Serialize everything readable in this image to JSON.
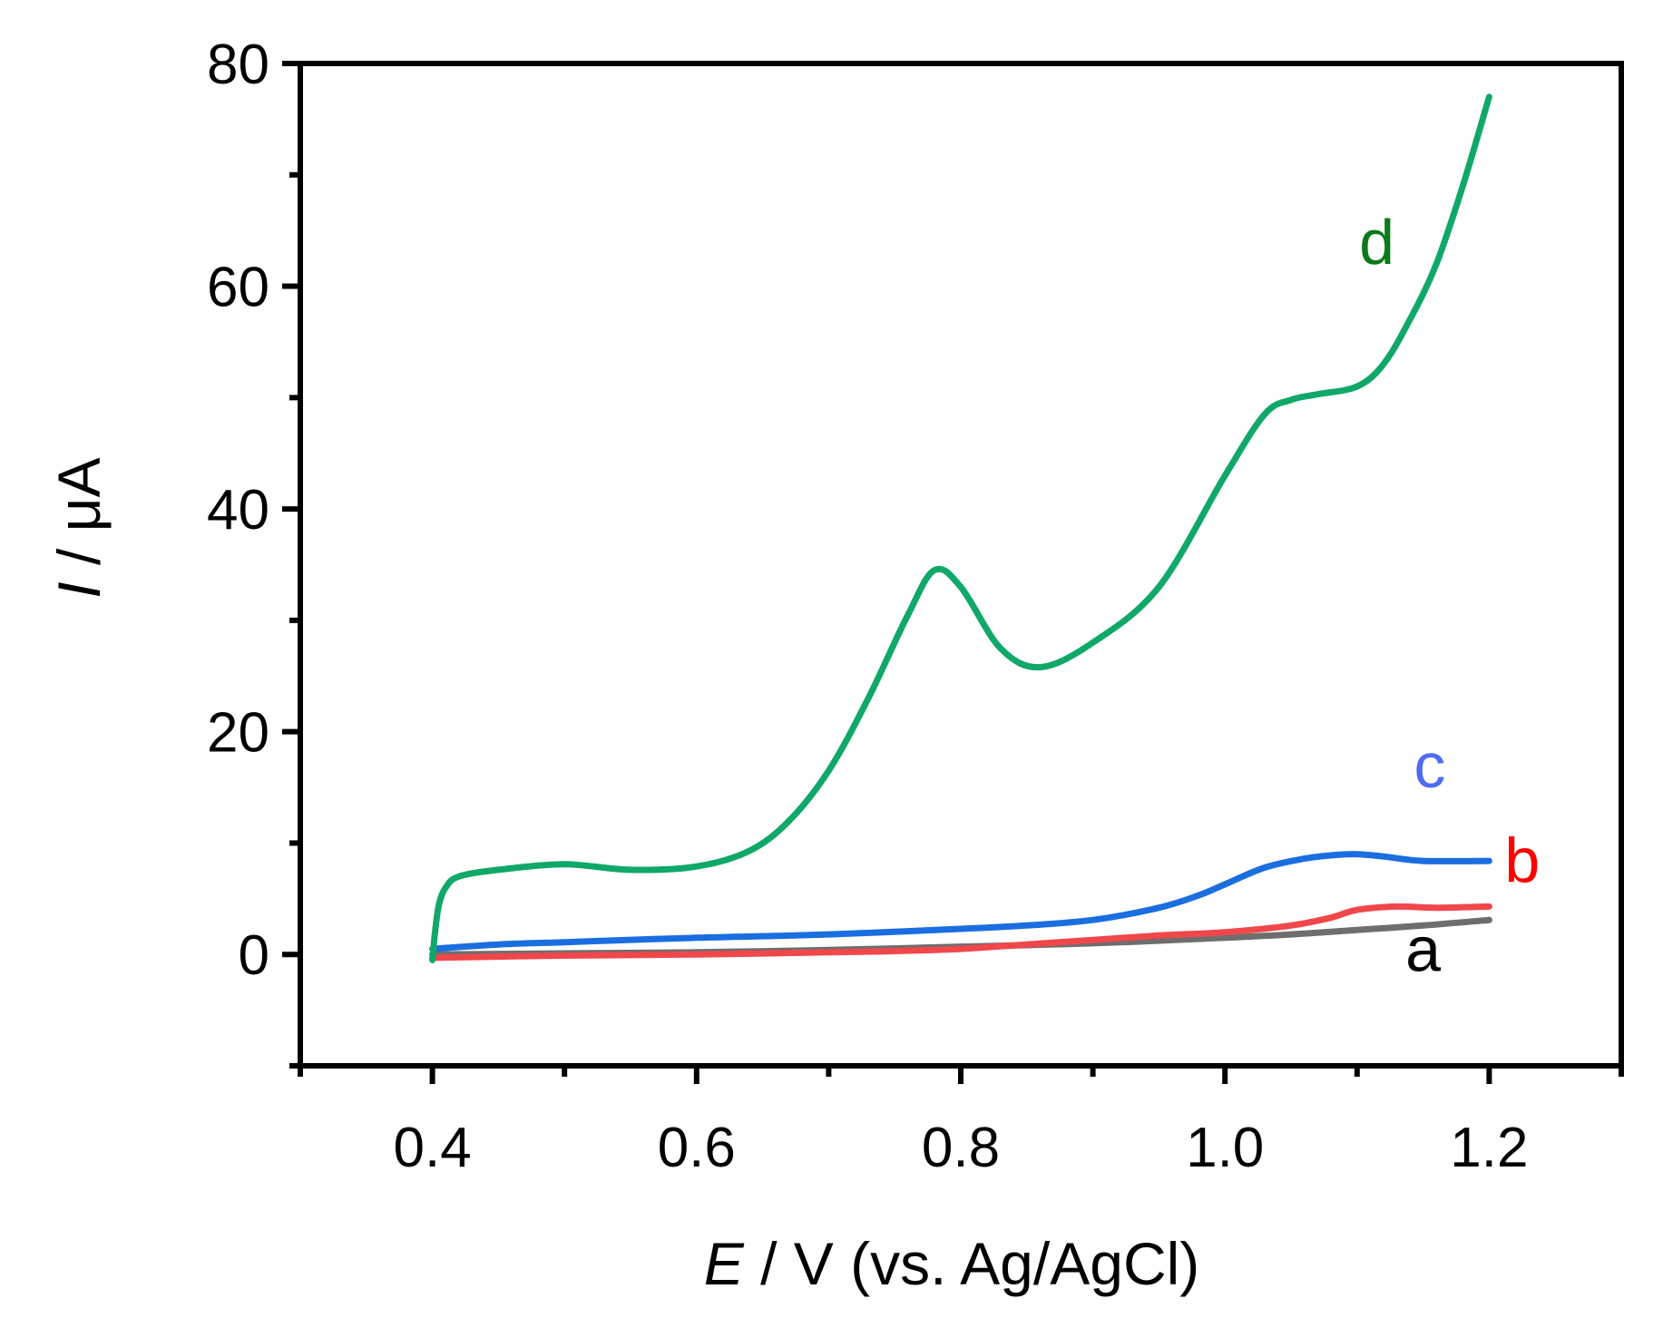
{
  "chart_data": {
    "type": "line",
    "title": "",
    "xlabel": {
      "italic": "E",
      "rest": " / V (vs. Ag/AgCl)"
    },
    "ylabel": {
      "italic": "I",
      "rest": " / μA"
    },
    "xlim": [
      0.3,
      1.3
    ],
    "ylim": [
      -10,
      80
    ],
    "xticks": [
      0.4,
      0.6,
      0.8,
      1.0,
      1.2
    ],
    "xtick_labels": [
      "0.4",
      "0.6",
      "0.8",
      "1.0",
      "1.2"
    ],
    "xminor": [
      0.3,
      0.5,
      0.7,
      0.9,
      1.1,
      1.3
    ],
    "yticks": [
      0,
      20,
      40,
      60,
      80
    ],
    "ytick_labels": [
      "0",
      "20",
      "40",
      "60",
      "80"
    ],
    "yminor": [
      -10,
      10,
      30,
      50,
      70
    ],
    "grid": false,
    "series": [
      {
        "name": "a",
        "color": "#6e6e6e",
        "label_color": "#000000",
        "label_pos": [
          1.15,
          -1.5
        ],
        "x": [
          0.4,
          0.5,
          0.6,
          0.7,
          0.8,
          0.9,
          1.0,
          1.05,
          1.1,
          1.15,
          1.2
        ],
        "y": [
          0.0,
          0.1,
          0.2,
          0.4,
          0.7,
          1.0,
          1.5,
          1.8,
          2.2,
          2.6,
          3.1
        ]
      },
      {
        "name": "b",
        "color": "#f0474a",
        "label_color": "#ff0000",
        "label_pos": [
          1.225,
          6.5
        ],
        "x": [
          0.4,
          0.5,
          0.6,
          0.7,
          0.75,
          0.8,
          0.85,
          0.9,
          0.95,
          1.0,
          1.05,
          1.08,
          1.1,
          1.13,
          1.16,
          1.2
        ],
        "y": [
          -0.3,
          -0.1,
          0.0,
          0.2,
          0.3,
          0.5,
          0.9,
          1.3,
          1.7,
          2.0,
          2.6,
          3.3,
          4.0,
          4.3,
          4.2,
          4.3
        ]
      },
      {
        "name": "c",
        "color": "#1a6ee0",
        "label_color": "#4f6cf0",
        "label_pos": [
          1.155,
          15.0
        ],
        "x": [
          0.4,
          0.45,
          0.5,
          0.6,
          0.7,
          0.8,
          0.85,
          0.9,
          0.95,
          0.98,
          1.0,
          1.03,
          1.06,
          1.08,
          1.1,
          1.12,
          1.15,
          1.2
        ],
        "y": [
          0.5,
          0.9,
          1.1,
          1.5,
          1.8,
          2.3,
          2.6,
          3.1,
          4.2,
          5.3,
          6.3,
          7.8,
          8.6,
          8.9,
          9.0,
          8.8,
          8.4,
          8.4
        ]
      },
      {
        "name": "d",
        "color": "#10a868",
        "label_color": "#0a7a1a",
        "label_pos": [
          1.115,
          62.0
        ],
        "x": [
          0.4,
          0.402,
          0.405,
          0.41,
          0.42,
          0.45,
          0.5,
          0.55,
          0.6,
          0.64,
          0.67,
          0.7,
          0.73,
          0.76,
          0.78,
          0.8,
          0.83,
          0.86,
          0.9,
          0.95,
          1.0,
          1.03,
          1.05,
          1.07,
          1.1,
          1.12,
          1.14,
          1.16,
          1.18,
          1.2
        ],
        "y": [
          -0.5,
          2.0,
          4.5,
          6.0,
          7.0,
          7.6,
          8.1,
          7.6,
          7.9,
          9.3,
          12.0,
          16.5,
          23.0,
          30.5,
          34.5,
          33.0,
          27.5,
          25.8,
          28.0,
          33.0,
          43.0,
          48.5,
          49.8,
          50.3,
          51.0,
          53.0,
          57.0,
          62.0,
          69.0,
          77.0
        ]
      }
    ]
  }
}
